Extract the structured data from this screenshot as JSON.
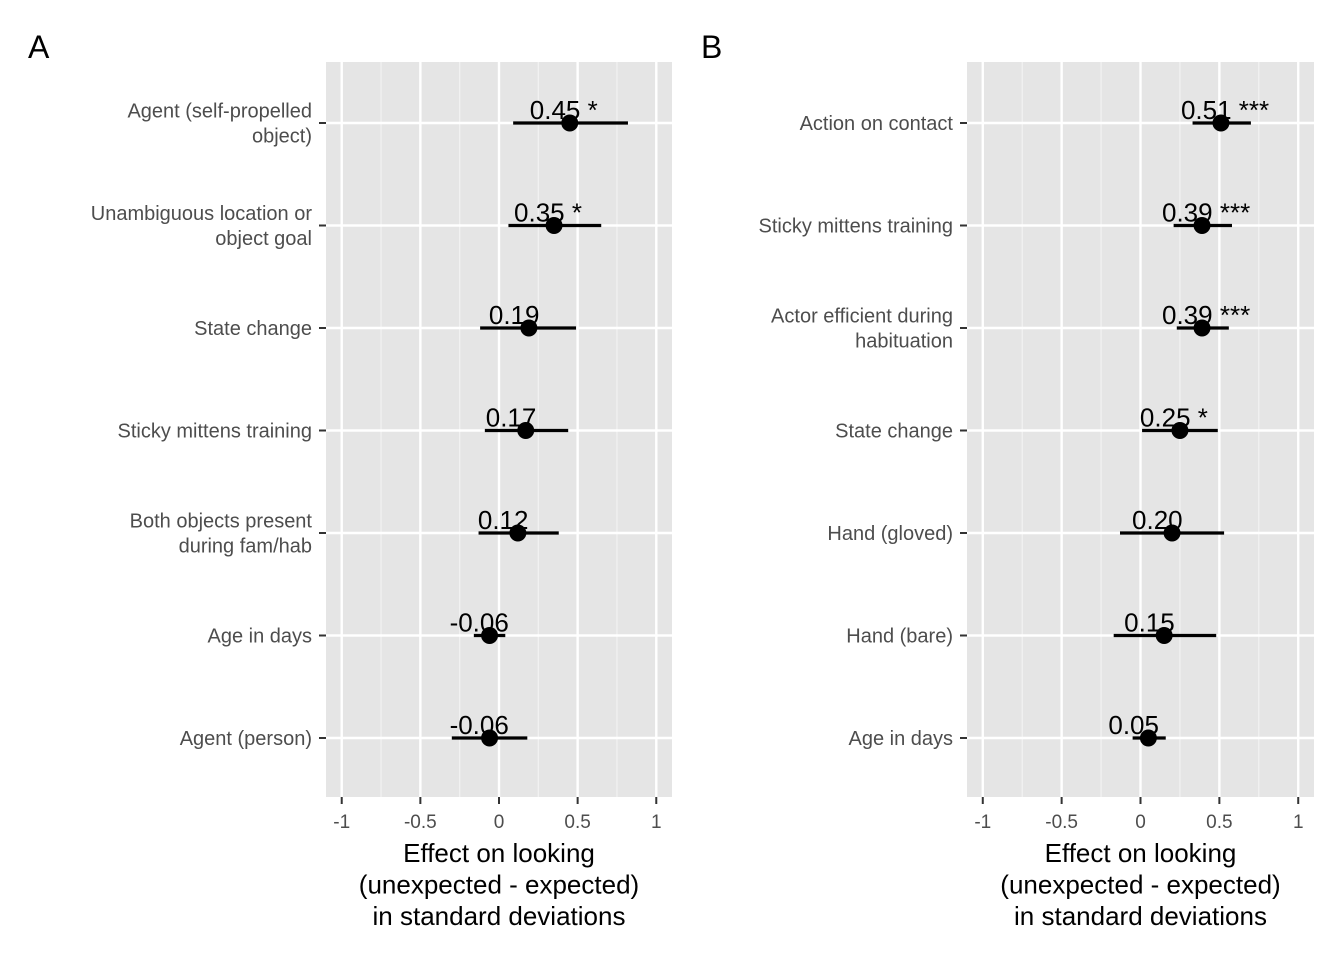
{
  "chart_data": [
    {
      "type": "scatter",
      "panel": "A",
      "xlabel": [
        "Effect on looking",
        "(unexpected - expected)",
        "in standard deviations"
      ],
      "xlim": [
        -1.1,
        1.1
      ],
      "xticks": [
        -1,
        -0.5,
        0,
        0.5,
        1
      ],
      "xtick_labels": [
        "-1",
        "-0.5",
        "0",
        "0.5",
        "1"
      ],
      "grid": true,
      "categories": [
        [
          "Agent (self-propelled",
          "object)"
        ],
        [
          "Unambiguous location or",
          "object goal"
        ],
        [
          "State change"
        ],
        [
          "Sticky mittens training"
        ],
        [
          "Both objects present",
          "during fam/hab"
        ],
        [
          "Age in days"
        ],
        [
          "Agent (person)"
        ]
      ],
      "estimates": [
        0.45,
        0.35,
        0.19,
        0.17,
        0.12,
        -0.06,
        -0.06
      ],
      "ci_low": [
        0.09,
        0.06,
        -0.12,
        -0.09,
        -0.13,
        -0.16,
        -0.3
      ],
      "ci_high": [
        0.82,
        0.65,
        0.49,
        0.44,
        0.38,
        0.04,
        0.18
      ],
      "labels": [
        "0.45 *",
        "0.35 *",
        "0.19",
        "0.17",
        "0.12",
        "-0.06",
        "-0.06"
      ]
    },
    {
      "type": "scatter",
      "panel": "B",
      "xlabel": [
        "Effect on looking",
        "(unexpected - expected)",
        "in standard deviations"
      ],
      "xlim": [
        -1.1,
        1.1
      ],
      "xticks": [
        -1,
        -0.5,
        0,
        0.5,
        1
      ],
      "xtick_labels": [
        "-1",
        "-0.5",
        "0",
        "0.5",
        "1"
      ],
      "grid": true,
      "categories": [
        [
          "Action on contact"
        ],
        [
          "Sticky mittens training"
        ],
        [
          "Actor efficient during",
          "habituation"
        ],
        [
          "State change"
        ],
        [
          "Hand (gloved)"
        ],
        [
          "Hand (bare)"
        ],
        [
          "Age in days"
        ]
      ],
      "estimates": [
        0.51,
        0.39,
        0.39,
        0.25,
        0.2,
        0.15,
        0.05
      ],
      "ci_low": [
        0.33,
        0.21,
        0.23,
        0.01,
        -0.13,
        -0.17,
        -0.05
      ],
      "ci_high": [
        0.7,
        0.58,
        0.56,
        0.49,
        0.53,
        0.48,
        0.16
      ],
      "labels": [
        "0.51 ***",
        "0.39 ***",
        "0.39 ***",
        "0.25 *",
        "0.20",
        "0.15",
        "0.05"
      ]
    }
  ]
}
